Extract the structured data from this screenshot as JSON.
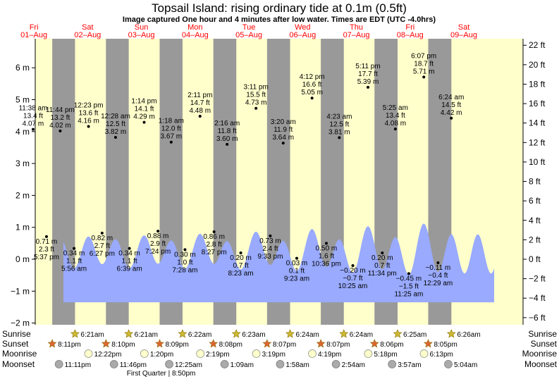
{
  "header": {
    "title": "Topsail Island: rising  ordinary tide at 0.1m (0.5ft)",
    "subtitle": "Image captured One hour and 4 minutes after low water. Times are EDT (UTC -4.0hrs)"
  },
  "colors": {
    "day_band": "#ffffcc",
    "night_band": "#999999",
    "tide_fill": "#99aaff",
    "day_label": "#ff0000",
    "sun_icon": "#ccbb33",
    "moon_light": "#ffffcc",
    "moon_dark": "#aaaaaa"
  },
  "chart_data": {
    "type": "area",
    "ylabel_left": "m",
    "ylabel_right": "ft",
    "ylim_m": [
      -2,
      6.5
    ],
    "y_ticks_m": [
      "−2 m",
      "−1 m",
      "0 m",
      "1 m",
      "2 m",
      "3 m",
      "4 m",
      "5 m",
      "6 m"
    ],
    "y_ticks_ft": [
      "−6 ft",
      "−4 ft",
      "−2 ft",
      "0 ft",
      "2 ft",
      "4 ft",
      "6 ft",
      "8 ft",
      "10 ft",
      "12 ft",
      "14 ft",
      "16 ft",
      "18 ft",
      "20 ft",
      "22 ft"
    ],
    "days": [
      {
        "weekday": "Fri",
        "date": "01–Aug"
      },
      {
        "weekday": "Sat",
        "date": "02–Aug"
      },
      {
        "weekday": "Sun",
        "date": "03–Aug"
      },
      {
        "weekday": "Mon",
        "date": "04–Aug"
      },
      {
        "weekday": "Tue",
        "date": "05–Aug"
      },
      {
        "weekday": "Wed",
        "date": "06–Aug"
      },
      {
        "weekday": "Thu",
        "date": "07–Aug"
      },
      {
        "weekday": "Fri",
        "date": "08–Aug"
      },
      {
        "weekday": "Sat",
        "date": "09–Aug"
      }
    ],
    "tide_labels": [
      {
        "type": "high",
        "time": "11:38 am",
        "ft": "13.4 ft",
        "m": "4.07 m",
        "value_m": 4.07
      },
      {
        "type": "low",
        "time": "5:37 pm",
        "ft": "2.3 ft",
        "m": "0.71 m",
        "value_m": 0.71
      },
      {
        "type": "high",
        "time": "11:44 pm",
        "ft": "13.2 ft",
        "m": "4.02 m",
        "value_m": 4.02
      },
      {
        "type": "low",
        "time": "5:56 am",
        "ft": "1.1 ft",
        "m": "0.34 m",
        "value_m": 0.34
      },
      {
        "type": "high",
        "time": "12:23 pm",
        "ft": "13.6 ft",
        "m": "4.16 m",
        "value_m": 4.16
      },
      {
        "type": "low",
        "time": "6:27 pm",
        "ft": "2.7 ft",
        "m": "0.82 m",
        "value_m": 0.82
      },
      {
        "type": "high",
        "time": "12:28 am",
        "ft": "12.5 ft",
        "m": "3.82 m",
        "value_m": 3.82
      },
      {
        "type": "low",
        "time": "6:39 am",
        "ft": "1.1 ft",
        "m": "0.34 m",
        "value_m": 0.34
      },
      {
        "type": "high",
        "time": "1:14 pm",
        "ft": "14.1 ft",
        "m": "4.29 m",
        "value_m": 4.29
      },
      {
        "type": "low",
        "time": "7:24 pm",
        "ft": "2.9 ft",
        "m": "0.88 m",
        "value_m": 0.88
      },
      {
        "type": "high",
        "time": "1:18 am",
        "ft": "12.0 ft",
        "m": "3.67 m",
        "value_m": 3.67
      },
      {
        "type": "low",
        "time": "7:28 am",
        "ft": "1.0 ft",
        "m": "0.30 m",
        "value_m": 0.3
      },
      {
        "type": "high",
        "time": "2:11 pm",
        "ft": "14.7 ft",
        "m": "4.48 m",
        "value_m": 4.48
      },
      {
        "type": "low",
        "time": "8:27 pm",
        "ft": "2.8 ft",
        "m": "0.86 m",
        "value_m": 0.86
      },
      {
        "type": "high",
        "time": "2:16 am",
        "ft": "11.8 ft",
        "m": "3.60 m",
        "value_m": 3.6
      },
      {
        "type": "low",
        "time": "8:23 am",
        "ft": "0.7 ft",
        "m": "0.20 m",
        "value_m": 0.2
      },
      {
        "type": "high",
        "time": "3:11 pm",
        "ft": "15.5 ft",
        "m": "4.73 m",
        "value_m": 4.73
      },
      {
        "type": "low",
        "time": "9:33 pm",
        "ft": "2.4 ft",
        "m": "0.73 m",
        "value_m": 0.73
      },
      {
        "type": "high",
        "time": "3:20 am",
        "ft": "11.9 ft",
        "m": "3.64 m",
        "value_m": 3.64
      },
      {
        "type": "low",
        "time": "9:23 am",
        "ft": "0.1 ft",
        "m": "0.03 m",
        "value_m": 0.03
      },
      {
        "type": "high",
        "time": "4:12 pm",
        "ft": "16.6 ft",
        "m": "5.05 m",
        "value_m": 5.05
      },
      {
        "type": "low",
        "time": "10:36 pm",
        "ft": "1.6 ft",
        "m": "0.50 m",
        "value_m": 0.5
      },
      {
        "type": "high",
        "time": "4:23 am",
        "ft": "12.5 ft",
        "m": "3.81 m",
        "value_m": 3.81
      },
      {
        "type": "low",
        "time": "10:25 am",
        "ft": "−0.7 ft",
        "m": "−0.20 m",
        "value_m": -0.2
      },
      {
        "type": "high",
        "time": "5:11 pm",
        "ft": "17.7 ft",
        "m": "5.39 m",
        "value_m": 5.39
      },
      {
        "type": "low",
        "time": "11:34 pm",
        "ft": "0.7 ft",
        "m": "0.20 m",
        "value_m": 0.2
      },
      {
        "type": "high",
        "time": "5:25 am",
        "ft": "13.4 ft",
        "m": "4.08 m",
        "value_m": 4.08
      },
      {
        "type": "low",
        "time": "11:25 am",
        "ft": "−1.5 ft",
        "m": "−0.45 m",
        "value_m": -0.45
      },
      {
        "type": "high",
        "time": "6:07 pm",
        "ft": "18.7 ft",
        "m": "5.71 m",
        "value_m": 5.71
      },
      {
        "type": "low",
        "time": "12:29 am",
        "ft": "−0.4 ft",
        "m": "−0.11 m",
        "value_m": -0.11
      },
      {
        "type": "high",
        "time": "6:24 am",
        "ft": "14.5 ft",
        "m": "4.42 m",
        "value_m": 4.42
      }
    ]
  },
  "almanac": {
    "row_labels": {
      "sunrise": "Sunrise",
      "sunset": "Sunset",
      "moonrise": "Moonrise",
      "moonset": "Moonset"
    },
    "sunrise": [
      "6:21am",
      "6:21am",
      "6:22am",
      "6:23am",
      "6:24am",
      "6:24am",
      "6:25am",
      "6:26am"
    ],
    "sunset": [
      "8:11pm",
      "8:10pm",
      "8:09pm",
      "8:08pm",
      "8:07pm",
      "8:07pm",
      "8:06pm",
      "8:05pm"
    ],
    "moonrise": [
      "12:22pm",
      "1:20pm",
      "2:19pm",
      "3:19pm",
      "4:19pm",
      "5:18pm",
      "6:13pm"
    ],
    "moonset": [
      "11:11pm",
      "11:46pm",
      "12:25am",
      "1:09am",
      "1:58am",
      "2:54am",
      "3:57am",
      "5:04am"
    ],
    "phase_note": "First Quarter | 8:50pm"
  }
}
